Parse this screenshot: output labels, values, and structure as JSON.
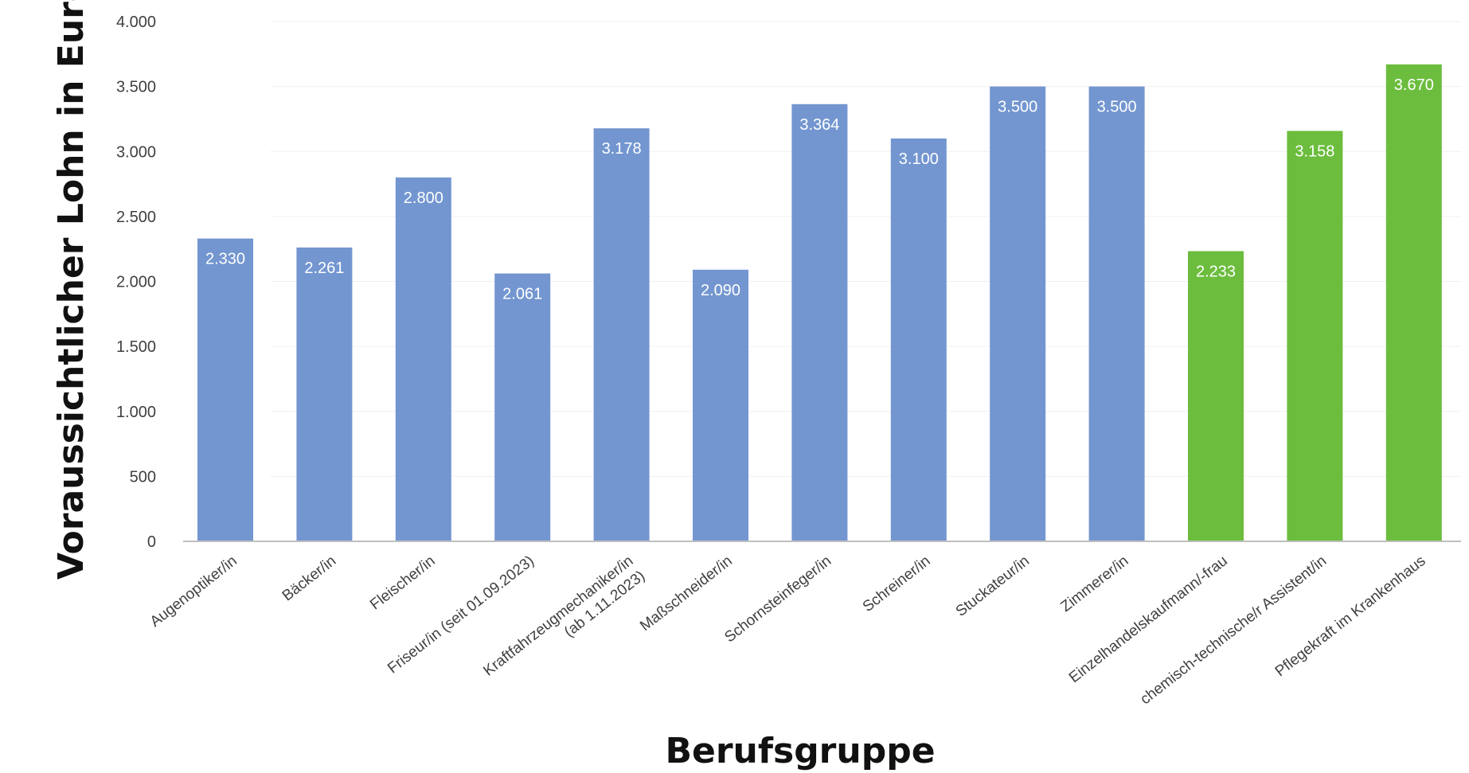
{
  "chart_data": {
    "type": "bar",
    "xlabel": "Berufsgruppe",
    "ylabel": "Voraussichtlicher Lohn in Euro",
    "ylim": [
      0,
      4000
    ],
    "yticks": [
      0,
      500,
      1000,
      1500,
      2000,
      2500,
      3000,
      3500,
      4000
    ],
    "ytick_labels": [
      "0",
      "500",
      "1.000",
      "1.500",
      "2.000",
      "2.500",
      "3.000",
      "3.500",
      "4.000"
    ],
    "grid": true,
    "legend": "none",
    "colors": {
      "blue": "#7396d0",
      "green": "#6cbd3e"
    },
    "categories": [
      "Augenoptiker/in",
      "Bäcker/in",
      "Fleischer/in",
      "Friseur/in (seit 01.09.2023)",
      "Kraftfahrzeugmechaniker/in (ab 1.11.2023)",
      "Maßschneider/in",
      "Schornsteinfeger/in",
      "Schreiner/in",
      "Stuckateur/in",
      "Zimmerer/in",
      "Einzelhandelskaufmann/-frau",
      "chemisch-technische/r Assistent/in",
      "Pflegekraft im Krankenhaus"
    ],
    "category_label_lines": [
      [
        "Augenoptiker/in"
      ],
      [
        "Bäcker/in"
      ],
      [
        "Fleischer/in"
      ],
      [
        "Friseur/in  (seit 01.09.2023)"
      ],
      [
        "Kraftfahrzeugmechaniker/in",
        "(ab 1.11.2023)"
      ],
      [
        "Maßschneider/in"
      ],
      [
        "Schornsteinfeger/in"
      ],
      [
        "Schreiner/in"
      ],
      [
        "Stuckateur/in"
      ],
      [
        "Zimmerer/in"
      ],
      [
        "Einzelhandelskaufmann/-frau"
      ],
      [
        "chemisch-technische/r  Assistent/in"
      ],
      [
        "Pflegekraft  im Krankenhaus"
      ]
    ],
    "values": [
      2330,
      2261,
      2800,
      2061,
      3178,
      2090,
      3364,
      3100,
      3500,
      3500,
      2233,
      3158,
      3670
    ],
    "value_labels": [
      "2.330",
      "2.261",
      "2.800",
      "2.061",
      "3.178",
      "2.090",
      "3.364",
      "3.100",
      "3.500",
      "3.500",
      "2.233",
      "3.158",
      "3.670"
    ],
    "bar_colors": [
      "blue",
      "blue",
      "blue",
      "blue",
      "blue",
      "blue",
      "blue",
      "blue",
      "blue",
      "blue",
      "green",
      "green",
      "green"
    ]
  }
}
